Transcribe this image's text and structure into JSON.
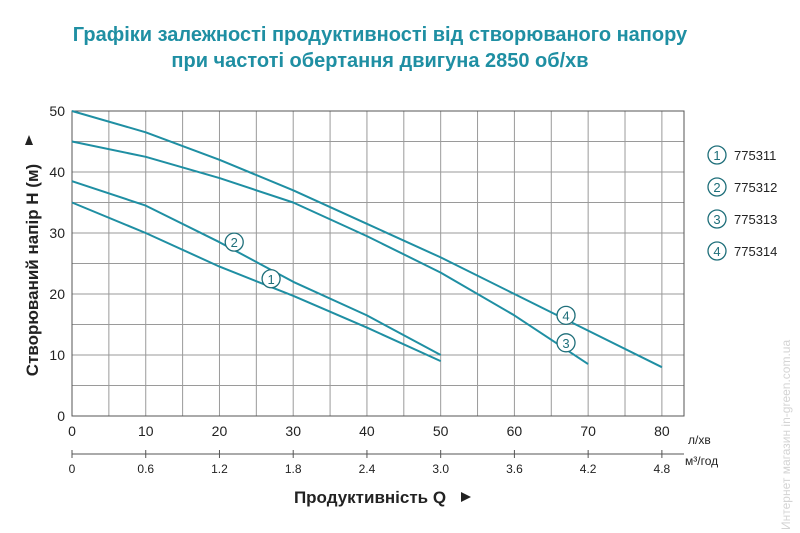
{
  "title": {
    "line1": "Графіки залежності продуктивності від створюваного напору",
    "line2": "при частоті обертання двигуна 2850 об/хв"
  },
  "watermark": "Интернет магазин  in-green.com.ua",
  "colors": {
    "curve": "#1f8fa3",
    "grid": "#9a9a9a",
    "title": "#1f8fa3",
    "circle": "#1f6f7a"
  },
  "chart_data": {
    "type": "line",
    "title": "Графіки залежності продуктивності від створюваного напору при частоті обертання двигуна 2850 об/хв",
    "xlabel": "Продуктивність  Q",
    "ylabel": "Створюваний напір H (м)",
    "x_unit": "л/хв",
    "x2_unit": "м³/год",
    "xlim": [
      0,
      83
    ],
    "ylim": [
      0,
      50
    ],
    "x_ticks": [
      "0",
      "10",
      "20",
      "30",
      "40",
      "50",
      "60",
      "70",
      "80"
    ],
    "x2_ticks": [
      "0",
      "0.6",
      "1.2",
      "1.8",
      "2.4",
      "3.0",
      "3.6",
      "4.2",
      "4.8"
    ],
    "y_ticks": [
      "0",
      "10",
      "20",
      "30",
      "40",
      "50"
    ],
    "grid": true,
    "legend_position": "right",
    "series": [
      {
        "name": "775311",
        "label": "1",
        "label_at": [
          27,
          22.5
        ],
        "x": [
          0,
          10,
          20,
          30,
          40,
          50
        ],
        "y": [
          35,
          30,
          24.5,
          19.7,
          14.5,
          9
        ]
      },
      {
        "name": "775312",
        "label": "2",
        "label_at": [
          22,
          28.5
        ],
        "x": [
          0,
          10,
          20,
          30,
          40,
          50
        ],
        "y": [
          38.5,
          34.5,
          28.5,
          22,
          16.5,
          10
        ]
      },
      {
        "name": "775313",
        "label": "3",
        "label_at": [
          67,
          12
        ],
        "x": [
          0,
          10,
          20,
          30,
          40,
          50,
          60,
          70
        ],
        "y": [
          45,
          42.5,
          39,
          35,
          29.5,
          23.5,
          16.5,
          8.5
        ]
      },
      {
        "name": "775314",
        "label": "4",
        "label_at": [
          67,
          16.5
        ],
        "x": [
          0,
          10,
          20,
          30,
          40,
          50,
          60,
          70,
          80
        ],
        "y": [
          50,
          46.5,
          42,
          37,
          31.5,
          26,
          20,
          14,
          8
        ]
      }
    ]
  }
}
